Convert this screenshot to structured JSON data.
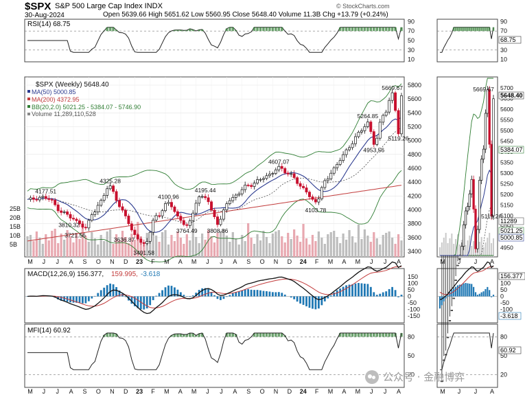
{
  "header": {
    "symbol": "$SPX",
    "name": "S&P 500 Large Cap Index INDX",
    "date": "30-Aug-2024",
    "ohlc": "Open 5639.66  High 5651.62  Low 5560.95  Close 5648.40  Volume 11.3B  Chg +13.79 (+0.24%)",
    "source": "© StockCharts.com"
  },
  "rsi": {
    "label": "RSI(14) 68.75",
    "ticks": [
      "90",
      "70",
      "50",
      "30",
      "10"
    ],
    "badge": "68.75"
  },
  "price": {
    "legend": [
      {
        "text": "$SPX (Weekly) 5648.40",
        "color": "#111111"
      },
      {
        "text": "MA(50) 5000.85",
        "color": "#2b3a8f"
      },
      {
        "text": "MA(200) 4372.95",
        "color": "#c23b3b"
      },
      {
        "text": "BB(20,2.0) 5021.25 - 5384.07 - 5746.90",
        "color": "#2e7d32"
      },
      {
        "text": "Volume 11,289,110,528",
        "color": "#555555"
      }
    ],
    "ticks": [
      "5800",
      "5600",
      "5400",
      "5200",
      "5000",
      "4800",
      "4600",
      "4400",
      "4200",
      "4000",
      "3800",
      "3600",
      "3400"
    ],
    "volume_ticks": [
      "25B",
      "20B",
      "15B",
      "10B",
      "5B"
    ],
    "annotations": [
      "5669.67",
      "5264.85",
      "5119.26",
      "4953.56",
      "4607.07",
      "4325.28",
      "4177.51",
      "4100.96",
      "4195.44",
      "4103.78",
      "3810.32",
      "3721.56",
      "3636.87",
      "3491.58",
      "3764.49",
      "3808.86"
    ],
    "right_ticks": [
      "5700",
      "5650",
      "5600",
      "5550",
      "5500",
      "5450",
      "5400",
      "5350",
      "5300",
      "5250",
      "5200",
      "5150",
      "5100",
      "5050",
      "5000",
      "4950"
    ],
    "right_annotations": [
      "5669.67",
      "5119.26"
    ],
    "right_badges": {
      "close": "5648.40",
      "bb_mid": "5384.07",
      "vol": "11289",
      "bb_low": "5021.25",
      "ma50": "5000.85"
    }
  },
  "macd": {
    "label": "MACD(12,26,9) 156.377, 159.995, -3.618",
    "label_main": "MACD(12,26,9) 156.377,",
    "label_signal": "159.995,",
    "label_hist": "-3.618",
    "ticks": [
      "150",
      "100",
      "50",
      "0",
      "-50",
      "-100",
      "-150"
    ],
    "right_ticks": [
      "150",
      "100",
      "50",
      "0",
      "-50",
      "-100",
      "-150"
    ],
    "badges": [
      "156.377",
      "-3.618"
    ]
  },
  "mfi": {
    "label": "MFI(14) 60.92",
    "ticks": [
      "80",
      "50",
      "20"
    ],
    "badge": "60.92"
  },
  "x_axis": {
    "main": [
      "M",
      "J",
      "J",
      "A",
      "S",
      "O",
      "N",
      "D",
      "23",
      "F",
      "M",
      "A",
      "M",
      "J",
      "J",
      "A",
      "S",
      "O",
      "N",
      "D",
      "24",
      "F",
      "M",
      "A",
      "M",
      "J",
      "J",
      "A"
    ],
    "right": [
      "M",
      "J",
      "J",
      "A"
    ]
  },
  "watermark": {
    "text": "公众号 · 金融博弈"
  },
  "chart_data": {
    "type": "candlestick",
    "title": "$SPX S&P 500 Large Cap Index INDX (Weekly)",
    "close": 5648.4,
    "yrange": [
      3400,
      5800
    ],
    "landmarks": [
      {
        "label": "4177.51",
        "value": 4177.51
      },
      {
        "label": "4325.28",
        "value": 4325.28
      },
      {
        "label": "3810.32",
        "value": 3810.32
      },
      {
        "label": "3721.56",
        "value": 3721.56
      },
      {
        "label": "3636.87",
        "value": 3636.87
      },
      {
        "label": "3491.58",
        "value": 3491.58
      },
      {
        "label": "4100.96",
        "value": 4100.96
      },
      {
        "label": "3764.49",
        "value": 3764.49
      },
      {
        "label": "4195.44",
        "value": 4195.44
      },
      {
        "label": "3808.86",
        "value": 3808.86
      },
      {
        "label": "4607.07",
        "value": 4607.07
      },
      {
        "label": "4103.78",
        "value": 4103.78
      },
      {
        "label": "5264.85",
        "value": 5264.85
      },
      {
        "label": "4953.56",
        "value": 4953.56
      },
      {
        "label": "5669.67",
        "value": 5669.67
      },
      {
        "label": "5119.26",
        "value": 5119.26
      }
    ],
    "indicators": {
      "rsi": 68.75,
      "ma50": 5000.85,
      "ma200": 4372.95,
      "bb": [
        5021.25,
        5384.07,
        5746.9
      ],
      "macd": [
        156.377,
        159.995,
        -3.618
      ],
      "mfi": 60.92
    }
  }
}
